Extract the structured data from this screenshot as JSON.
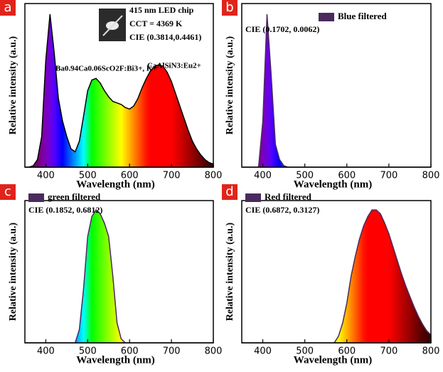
{
  "chart_data": [
    {
      "type": "area",
      "panel": "a",
      "xlabel": "Wavelength (nm)",
      "ylabel": "Relative intensity (a.u.)",
      "annotations": [
        "415 nm LED chip",
        "CCT = 4369 K",
        "CIE (0.3814,0.4461)",
        "Ba0.94Ca0.06ScO2F:Bi3+, K+",
        "CaAlSiN3:Eu2+"
      ],
      "x": [
        350,
        360,
        370,
        380,
        390,
        400,
        410,
        420,
        430,
        440,
        450,
        460,
        470,
        480,
        490,
        500,
        510,
        520,
        530,
        540,
        550,
        560,
        570,
        580,
        590,
        600,
        610,
        620,
        630,
        640,
        650,
        660,
        670,
        680,
        690,
        700,
        710,
        720,
        730,
        740,
        750,
        760,
        770,
        780,
        790,
        800
      ],
      "series": [
        {
          "color": "#000000",
          "values": [
            0,
            0,
            0.01,
            0.05,
            0.2,
            0.7,
            1.0,
            0.75,
            0.45,
            0.3,
            0.2,
            0.12,
            0.1,
            0.17,
            0.33,
            0.5,
            0.57,
            0.58,
            0.55,
            0.5,
            0.46,
            0.43,
            0.42,
            0.41,
            0.39,
            0.38,
            0.4,
            0.45,
            0.52,
            0.58,
            0.63,
            0.66,
            0.67,
            0.66,
            0.62,
            0.56,
            0.48,
            0.4,
            0.32,
            0.24,
            0.17,
            0.12,
            0.08,
            0.05,
            0.03,
            0.02
          ]
        }
      ],
      "xlim": [
        350,
        800
      ],
      "xticks": [
        400,
        500,
        600,
        700,
        800
      ],
      "ylim": [
        0,
        1.07
      ]
    },
    {
      "type": "area",
      "panel": "b",
      "xlabel": "Wavelength (nm)",
      "ylabel": "Relative intensity (a.u.)",
      "annotations": [
        "CIE (0.1702, 0.0062)"
      ],
      "x": [
        350,
        360,
        370,
        380,
        390,
        400,
        410,
        420,
        430,
        440,
        450,
        460,
        470,
        480,
        490,
        500,
        510,
        520,
        530,
        540,
        550,
        560,
        570,
        580,
        590,
        600,
        610,
        620,
        630,
        640,
        650,
        660,
        670,
        680,
        690,
        700,
        710,
        720,
        730,
        740,
        750,
        760,
        770,
        780,
        790,
        800
      ],
      "series": [
        {
          "name": "Blue filtered",
          "color": "#4b2a5e",
          "values": [
            0,
            0,
            0,
            0,
            0,
            0.3,
            1.0,
            0.6,
            0.15,
            0.05,
            0.01,
            0,
            0,
            0,
            0,
            0,
            0,
            0,
            0,
            0,
            0,
            0,
            0,
            0,
            0,
            0,
            0,
            0,
            0,
            0,
            0,
            0,
            0,
            0,
            0,
            0,
            0,
            0,
            0,
            0,
            0,
            0,
            0,
            0,
            0,
            0
          ]
        }
      ],
      "xlim": [
        350,
        800
      ],
      "xticks": [
        400,
        500,
        600,
        700,
        800
      ],
      "ylim": [
        0,
        1.07
      ]
    },
    {
      "type": "area",
      "panel": "c",
      "xlabel": "Wavelength (nm)",
      "ylabel": "Relative intensity (a.u.)",
      "annotations": [
        "CIE (0.1852, 0.6812)"
      ],
      "x": [
        350,
        360,
        370,
        380,
        390,
        400,
        410,
        420,
        430,
        440,
        450,
        460,
        470,
        480,
        490,
        500,
        510,
        520,
        530,
        540,
        550,
        560,
        570,
        580,
        590,
        600,
        610,
        620,
        630,
        640,
        650,
        660,
        670,
        680,
        690,
        700,
        710,
        720,
        730,
        740,
        750,
        760,
        770,
        780,
        790,
        800
      ],
      "series": [
        {
          "name": "green filtered",
          "color": "#4b2a5e",
          "values": [
            0,
            0,
            0,
            0,
            0,
            0,
            0,
            0,
            0,
            0,
            0,
            0,
            0,
            0.1,
            0.4,
            0.8,
            0.95,
            1.0,
            0.97,
            0.9,
            0.8,
            0.5,
            0.15,
            0.03,
            0,
            0,
            0,
            0,
            0,
            0,
            0,
            0,
            0,
            0,
            0,
            0,
            0,
            0,
            0,
            0,
            0,
            0,
            0,
            0,
            0,
            0
          ]
        }
      ],
      "xlim": [
        350,
        800
      ],
      "xticks": [
        400,
        500,
        600,
        700,
        800
      ],
      "ylim": [
        0,
        1.07
      ]
    },
    {
      "type": "area",
      "panel": "d",
      "xlabel": "Wavelength (nm)",
      "ylabel": "Relative intensity (a.u.)",
      "annotations": [
        "CIE (0.6872, 0.3127)"
      ],
      "x": [
        350,
        360,
        370,
        380,
        390,
        400,
        410,
        420,
        430,
        440,
        450,
        460,
        470,
        480,
        490,
        500,
        510,
        520,
        530,
        540,
        550,
        560,
        570,
        580,
        590,
        600,
        610,
        620,
        630,
        640,
        650,
        660,
        670,
        680,
        690,
        700,
        710,
        720,
        730,
        740,
        750,
        760,
        770,
        780,
        790,
        800
      ],
      "series": [
        {
          "name": "Red filtered",
          "color": "#4b2a5e",
          "values": [
            0,
            0,
            0,
            0,
            0,
            0,
            0,
            0,
            0,
            0,
            0,
            0,
            0,
            0,
            0,
            0,
            0,
            0,
            0,
            0,
            0,
            0,
            0,
            0.05,
            0.15,
            0.3,
            0.5,
            0.65,
            0.78,
            0.88,
            0.95,
            1.0,
            1.0,
            0.97,
            0.9,
            0.82,
            0.72,
            0.62,
            0.52,
            0.43,
            0.35,
            0.27,
            0.2,
            0.14,
            0.09,
            0.06
          ]
        }
      ],
      "xlim": [
        350,
        800
      ],
      "xticks": [
        400,
        500,
        600,
        700,
        800
      ],
      "ylim": [
        0,
        1.07
      ]
    }
  ]
}
